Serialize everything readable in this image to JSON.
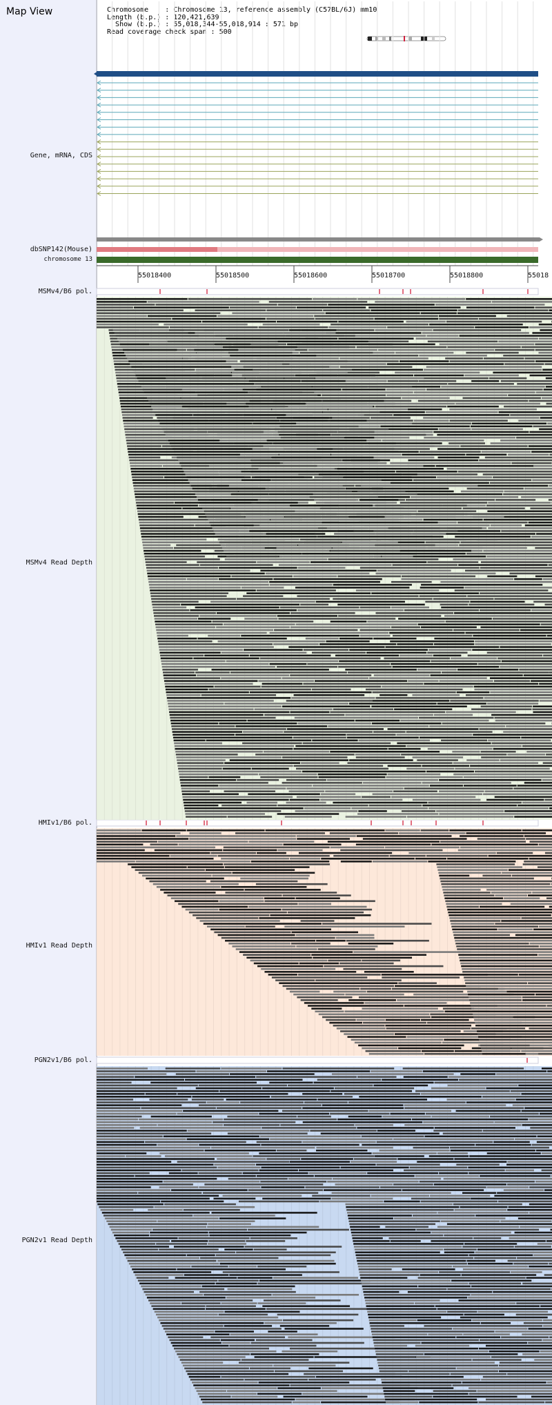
{
  "title": "Map View",
  "info": {
    "chromosome_label": "Chromosome",
    "chromosome_value": "Chromosome 13, reference assembly (C57BL/6J) mm10",
    "length_label": "Length (b.p.)",
    "length_value": "120,421,639",
    "show_label": "Show (b.p.)",
    "show_value": "55,018,344-55,018,914 : 571 bp",
    "coverage_label": "Read coverage check span",
    "coverage_value": "500"
  },
  "track_labels": {
    "gene": "Gene, mRNA, CDS",
    "snp": "dbSNP142(Mouse)",
    "chrom": "chromosome 13",
    "msm_pol": "MSMv4/B6 pol.",
    "msm_depth": "MSMv4 Read Depth",
    "hmi_pol": "HMIv1/B6 pol.",
    "hmi_depth": "HMIv1 Read Depth",
    "pgn_pol": "PGN2v1/B6 pol.",
    "pgn_depth": "PGN2v1 Read Depth"
  },
  "axis_ticks": [
    "55018400",
    "55018500",
    "55018600",
    "55018700",
    "55018800",
    "55018"
  ],
  "colors": {
    "gene_main": "#1f4e86",
    "mrna_teal": "#5aa7b8",
    "mrna_olive": "#9aa35a",
    "snp": "#e07a80",
    "chrom": "#3a6a2a",
    "msm_bg": "#eaf2e1",
    "hmi_bg": "#fde8da",
    "pgn_bg": "#c8d9f1",
    "pol_mark": "#d21f3c"
  }
}
